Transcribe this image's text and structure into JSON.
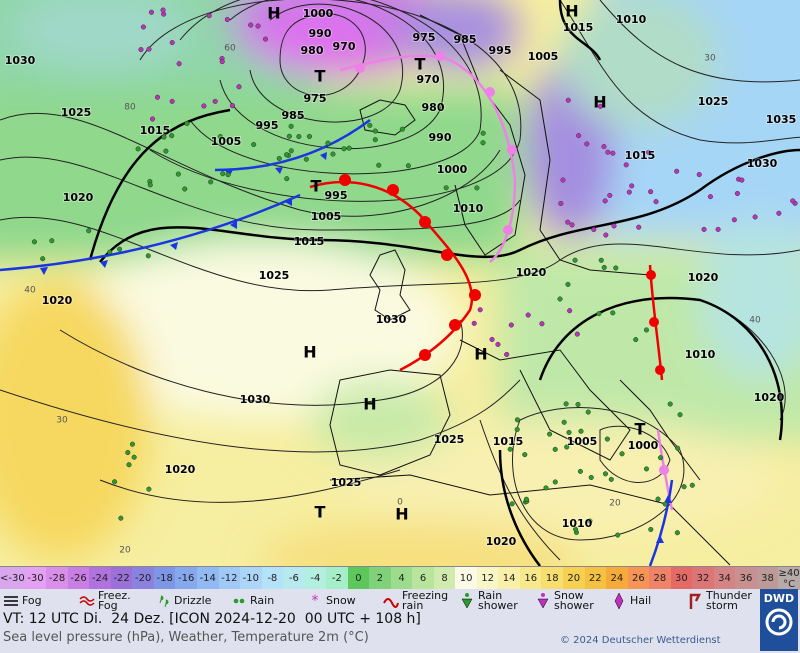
{
  "map": {
    "pressure_labels": [
      "1000",
      "990",
      "980",
      "970",
      "975",
      "985",
      "995",
      "1005",
      "970",
      "975",
      "985",
      "995",
      "980",
      "990",
      "1005",
      "1015",
      "1025",
      "1030",
      "1010",
      "1015",
      "1025",
      "1035",
      "1030",
      "1015",
      "1000",
      "995",
      "1005",
      "1010",
      "1015",
      "1020",
      "1025",
      "1020",
      "1020",
      "1020",
      "1030",
      "1010",
      "1020",
      "1030",
      "1025",
      "1015",
      "1005",
      "1000",
      "1020",
      "1025",
      "1010",
      "1020"
    ],
    "pressure_centers": [
      "H",
      "H",
      "T",
      "T",
      "H",
      "T",
      "H",
      "H",
      "H",
      "T",
      "T",
      "H"
    ],
    "temperature_labels": [
      "40",
      "30",
      "20",
      "30",
      "40",
      "20",
      "0",
      "80",
      "60"
    ]
  },
  "legend": {
    "temperature_scale": [
      {
        "label": "<-30",
        "color": "#d9a6ee"
      },
      {
        "label": "-30",
        "color": "#e4a0f2"
      },
      {
        "label": "-28",
        "color": "#d98ee9"
      },
      {
        "label": "-26",
        "color": "#c87ee2"
      },
      {
        "label": "-24",
        "color": "#b072dc"
      },
      {
        "label": "-22",
        "color": "#9b70d8"
      },
      {
        "label": "-20",
        "color": "#8a82de"
      },
      {
        "label": "-18",
        "color": "#7f96e6"
      },
      {
        "label": "-16",
        "color": "#86a8ec"
      },
      {
        "label": "-14",
        "color": "#92b9f2"
      },
      {
        "label": "-12",
        "color": "#a0c9f6"
      },
      {
        "label": "-10",
        "color": "#acd6f8"
      },
      {
        "label": "-8",
        "color": "#b4e2f6"
      },
      {
        "label": "-6",
        "color": "#b6eaee"
      },
      {
        "label": "-4",
        "color": "#b2efdf"
      },
      {
        "label": "-2",
        "color": "#a6eec8"
      },
      {
        "label": "0",
        "color": "#5cc85c"
      },
      {
        "label": "2",
        "color": "#7fd27a"
      },
      {
        "label": "4",
        "color": "#9ddc8c"
      },
      {
        "label": "6",
        "color": "#b8e49c"
      },
      {
        "label": "8",
        "color": "#cfecae"
      },
      {
        "label": "10",
        "color": "#fafae6"
      },
      {
        "label": "12",
        "color": "#f8f6c6"
      },
      {
        "label": "14",
        "color": "#f8f0a8"
      },
      {
        "label": "16",
        "color": "#f8e88c"
      },
      {
        "label": "18",
        "color": "#f8de6e"
      },
      {
        "label": "20",
        "color": "#f6d050"
      },
      {
        "label": "22",
        "color": "#f6c040"
      },
      {
        "label": "24",
        "color": "#f6aa3a"
      },
      {
        "label": "26",
        "color": "#f69456"
      },
      {
        "label": "28",
        "color": "#f08268"
      },
      {
        "label": "30",
        "color": "#e46a66"
      },
      {
        "label": "32",
        "color": "#dc7676"
      },
      {
        "label": "34",
        "color": "#d48484"
      },
      {
        "label": "36",
        "color": "#c89090"
      },
      {
        "label": "38",
        "color": "#bc9a98"
      },
      {
        "label": "≥40 °C",
        "color": "#b8aaa8"
      }
    ],
    "weather_symbols": [
      "Fog",
      "Freez. Fog",
      "Drizzle",
      "Rain",
      "Snow",
      "Freezing rain",
      "Rain shower",
      "Snow shower",
      "Hail",
      "Thunder storm"
    ]
  },
  "footer": {
    "valid_time": "VT: 12 UTC Di.  24 Dez. [ICON 2024-12-20  00 UTC + 108 h]",
    "description": "Sea level pressure (hPa), Weather, Temperature 2m (°C)",
    "copyright": "© 2024 Deutscher Wetterdienst",
    "logo": "DWD"
  }
}
